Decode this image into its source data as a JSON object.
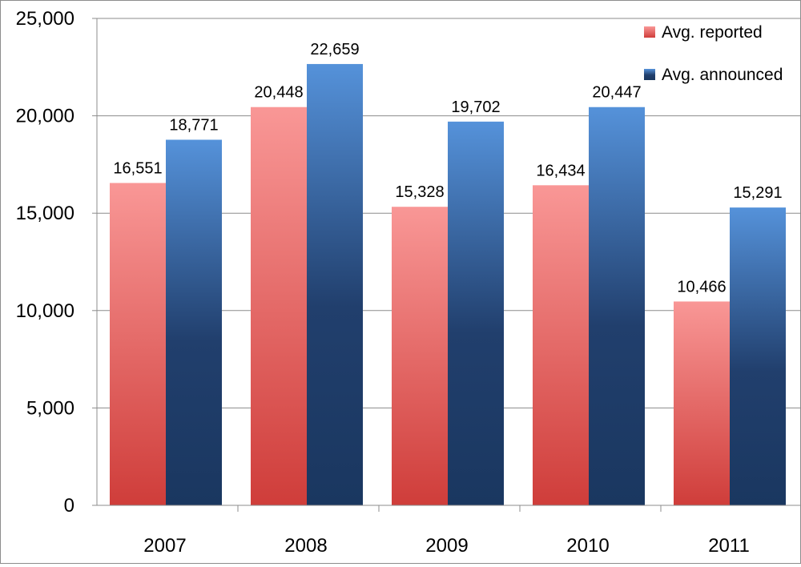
{
  "chart_data": {
    "type": "bar",
    "categories": [
      "2007",
      "2008",
      "2009",
      "2010",
      "2011"
    ],
    "series": [
      {
        "name": "Avg. reported",
        "values": [
          16551,
          20448,
          15328,
          16434,
          10466
        ],
        "value_labels": [
          "16,551",
          "20,448",
          "15,328",
          "16,434",
          "10,466"
        ],
        "color_top": "#f99796",
        "color_bottom": "#cf3d3a"
      },
      {
        "name": "Avg. announced",
        "values": [
          18771,
          22659,
          19702,
          20447,
          15291
        ],
        "value_labels": [
          "18,771",
          "22,659",
          "19,702",
          "20,447",
          "15,291"
        ],
        "color_top": "#5592da",
        "color_bottom": "#1a3760"
      }
    ],
    "y_ticks": [
      0,
      5000,
      10000,
      15000,
      20000,
      25000
    ],
    "y_tick_labels": [
      "0",
      "5,000",
      "10,000",
      "15,000",
      "20,000",
      "25,000"
    ],
    "ylim": [
      0,
      25000
    ],
    "grid": true,
    "legend_position": "top-right",
    "title": "",
    "xlabel": "",
    "ylabel": ""
  }
}
